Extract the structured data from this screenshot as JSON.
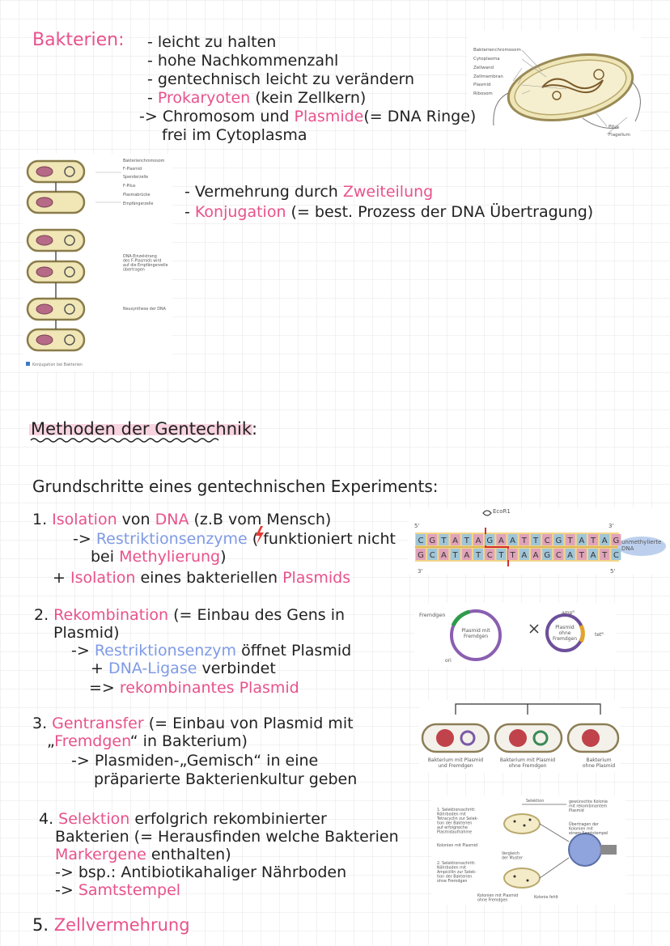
{
  "bacteria": {
    "title": "Bakterien:",
    "lines": [
      [
        "- leicht zu halten"
      ],
      [
        "- hohe Nachkommenzahl"
      ],
      [
        "- gentechnisch leicht zu verändern"
      ],
      [
        "- ",
        "Prokaryoten",
        " (kein Zellkern)"
      ],
      [
        "-> Chromosom und ",
        "Plasmide",
        "(= DNA Ringe)"
      ],
      [
        "frei im Cytoplasma"
      ]
    ],
    "figure_labels": [
      [
        "Bakterienchromosom"
      ],
      [
        "Cytoplasma"
      ],
      [
        "Zellwand"
      ],
      [
        "Zellmembran"
      ],
      [
        "Plasmid"
      ],
      [
        "Ribosom"
      ],
      [
        "Pilus"
      ],
      [
        "Flagellum"
      ]
    ]
  },
  "reproduction": {
    "lines": [
      [
        "- Vermehrung durch ",
        "Zweiteilung"
      ],
      [
        "- ",
        "Konjugation",
        " (= best. Prozess der DNA Übertragung)"
      ]
    ],
    "figure_labels": [
      [
        "Bakterienchromosom"
      ],
      [
        "F-Plasmid"
      ],
      [
        "Spenderzelle"
      ],
      [
        "F-Pilus"
      ],
      [
        "Plasmabrücke"
      ],
      [
        "Empfängerzelle"
      ],
      [
        "DNA-Einzelstrang",
        "des F-Plasmids wird",
        "auf die Empfängerzelle",
        "übertragen"
      ],
      [
        "Neusynthese der DNA"
      ]
    ],
    "caption": "Konjugation bei Bakterien"
  },
  "methods": {
    "title": "Methoden der Gentechnik:",
    "subtitle": "Grundschritte eines gentechnischen Experiments:"
  },
  "steps": [
    {
      "lines": [
        [
          "1. ",
          "Isolation",
          " von ",
          "DNA",
          " (z.B vom Mensch)"
        ],
        [
          "-> ",
          "Restriktionsenzyme",
          " (   funktioniert nicht"
        ],
        [
          "bei ",
          "Methylierung",
          ")"
        ],
        [
          "+ ",
          "Isolation",
          " eines bakteriellen ",
          "Plasmids"
        ]
      ],
      "figure": {
        "labels": [
          [
            "5'"
          ],
          [
            "3'"
          ],
          [
            "EcoR1"
          ],
          [
            "unmethylierte",
            "DNA"
          ],
          [
            "3'"
          ],
          [
            "5'"
          ]
        ],
        "top_strand": [
          "C",
          "G",
          "T",
          "A",
          "T",
          "A",
          "G",
          "A",
          "A",
          "T",
          "T",
          "C",
          "G",
          "T",
          "A",
          "T",
          "A",
          "G"
        ],
        "bottom_strand": [
          "G",
          "C",
          "A",
          "T",
          "A",
          "T",
          "C",
          "T",
          "T",
          "A",
          "A",
          "G",
          "C",
          "A",
          "T",
          "A",
          "T",
          "C"
        ]
      }
    },
    {
      "lines": [
        [
          "2. ",
          "Rekombination",
          " (= Einbau des Gens in"
        ],
        [
          "Plasmid)"
        ],
        [
          "-> ",
          "Restriktionsenzym",
          " öffnet Plasmid"
        ],
        [
          "+ ",
          "DNA-Ligase",
          " verbindet"
        ],
        [
          "=> ",
          "rekombinantes Plasmid"
        ]
      ],
      "figure": {
        "labels": [
          [
            "Fremdgen"
          ],
          [
            "Plasmid mit",
            "Fremdgen"
          ],
          [
            "ori"
          ],
          [
            "ampᴿ"
          ],
          [
            "Plasmid",
            "ohne",
            "Fremdgen"
          ],
          [
            "tetᴿ"
          ]
        ]
      }
    },
    {
      "lines": [
        [
          "3. ",
          "Gentransfer",
          " (= Einbau von Plasmid mit"
        ],
        [
          "„",
          "Fremdgen",
          "“ in Bakterium)"
        ],
        [
          "-> Plasmiden-„Gemisch“ in eine"
        ],
        [
          "präparierte Bakterienkultur geben"
        ]
      ],
      "figure": {
        "labels": [
          [
            "Bakterium mit Plasmid",
            "und Fremdgen"
          ],
          [
            "Bakterium mit Plasmid",
            "ohne Fremdgen"
          ],
          [
            "Bakterium",
            "ohne Plasmid"
          ]
        ]
      }
    },
    {
      "lines": [
        [
          "4. ",
          "Selektion",
          " erfolgrich rekombinierter"
        ],
        [
          "Bakterien (= Herausfinden welche Bakterien"
        ],
        [
          "Markergene",
          " enthalten)"
        ],
        [
          "-> bsp.: Antibiotikahaliger Nährboden"
        ],
        [
          "-> ",
          "Samtstempel"
        ]
      ],
      "figure": {
        "labels": [
          [
            "Selektion"
          ],
          [
            "1. Selektionsschritt:",
            "Nährboden mit",
            "Tetracyclin zur Selek-",
            "tion der Bakterien",
            "auf erfolgreiche",
            "Plasmidaufnahme"
          ],
          [
            "Kolonien mit Plasmid"
          ],
          [
            "Vergleich",
            "der Muster"
          ],
          [
            "2. Selektionsschritt:",
            "Nährboden mit",
            "Ampicillin zur Selek-",
            "tion der Bakterien",
            "ohne Fremdgen"
          ],
          [
            "Kolonien mit Plasmid",
            "ohne Fremdgen"
          ],
          [
            "Kolonie fehlt"
          ],
          [
            "gewünschte Kolonie",
            "mit rekombinantem",
            "Plasmid"
          ],
          [
            "Übertragen der",
            "Kolonien mit",
            "einem Samtstempel"
          ]
        ]
      }
    },
    {
      "lines": [
        [
          "5. ",
          "Zellvermehrung"
        ]
      ]
    }
  ]
}
